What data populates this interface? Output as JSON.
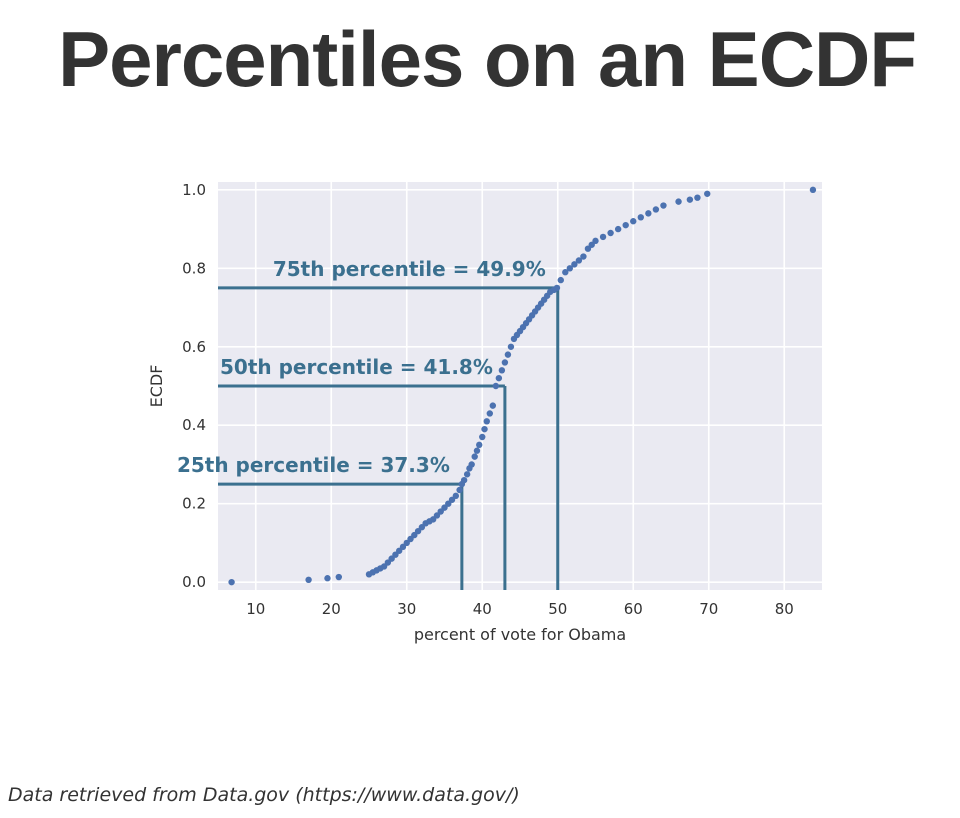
{
  "slide": {
    "title": "Percentiles on an ECDF",
    "footer": "Data retrieved from Data.gov (https://www.data.gov/)"
  },
  "colors": {
    "plot_background": "#eaeaf2",
    "grid": "#ffffff",
    "points": "#4c72b0",
    "annotation": "#3b708f",
    "text": "#333333"
  },
  "chart_data": {
    "type": "scatter",
    "title": "",
    "xlabel": "percent of vote for Obama",
    "ylabel": "ECDF",
    "xlim": [
      5,
      85
    ],
    "ylim": [
      -0.02,
      1.02
    ],
    "x_ticks": [
      10,
      20,
      30,
      40,
      50,
      60,
      70,
      80
    ],
    "y_ticks": [
      0.0,
      0.2,
      0.4,
      0.6,
      0.8,
      1.0
    ],
    "y_tick_labels": [
      "0.0",
      "0.2",
      "0.4",
      "0.6",
      "0.8",
      "1.0"
    ],
    "grid": true,
    "series": [
      {
        "x": [
          6.8,
          17,
          19.5,
          21,
          25,
          25.5,
          26,
          26.5,
          27,
          27.5,
          28,
          28.5,
          29,
          29.5,
          30,
          30.5,
          31,
          31.5,
          32,
          32.5,
          33,
          33.5,
          34,
          34.5,
          35,
          35.5,
          36,
          36.5,
          37,
          37.3,
          37.6,
          38,
          38.3,
          38.6,
          39,
          39.3,
          39.6,
          40,
          40.3,
          40.6,
          41,
          41.4,
          41.8,
          42.2,
          42.6,
          43,
          43.4,
          43.8,
          44.2,
          44.6,
          45,
          45.4,
          45.8,
          46.2,
          46.6,
          47,
          47.4,
          47.8,
          48.2,
          48.6,
          49,
          49.5,
          49.9,
          50.4,
          51,
          51.6,
          52.2,
          52.8,
          53.4,
          54,
          54.5,
          55,
          56,
          57,
          58,
          59,
          60,
          61,
          62,
          63,
          64,
          66,
          67.5,
          68.5,
          69.8,
          83.8
        ],
        "y": [
          0.0,
          0.006,
          0.01,
          0.013,
          0.02,
          0.025,
          0.03,
          0.035,
          0.04,
          0.05,
          0.06,
          0.07,
          0.08,
          0.09,
          0.1,
          0.11,
          0.12,
          0.13,
          0.14,
          0.15,
          0.155,
          0.16,
          0.17,
          0.18,
          0.19,
          0.2,
          0.21,
          0.22,
          0.235,
          0.25,
          0.26,
          0.275,
          0.29,
          0.3,
          0.32,
          0.335,
          0.35,
          0.37,
          0.39,
          0.41,
          0.43,
          0.45,
          0.5,
          0.52,
          0.54,
          0.56,
          0.58,
          0.6,
          0.62,
          0.63,
          0.64,
          0.65,
          0.66,
          0.67,
          0.68,
          0.69,
          0.7,
          0.71,
          0.72,
          0.73,
          0.74,
          0.745,
          0.75,
          0.77,
          0.79,
          0.8,
          0.81,
          0.82,
          0.83,
          0.85,
          0.86,
          0.87,
          0.88,
          0.89,
          0.9,
          0.91,
          0.92,
          0.93,
          0.94,
          0.95,
          0.96,
          0.97,
          0.975,
          0.98,
          0.99,
          1.0
        ]
      }
    ],
    "annotations": [
      {
        "label": "75th percentile = 49.9%",
        "y": 0.75,
        "x_line": 50
      },
      {
        "label": "50th percentile = 41.8%",
        "y": 0.5,
        "x_line": 43
      },
      {
        "label": "25th percentile = 37.3%",
        "y": 0.25,
        "x_line": 37.3
      }
    ]
  }
}
